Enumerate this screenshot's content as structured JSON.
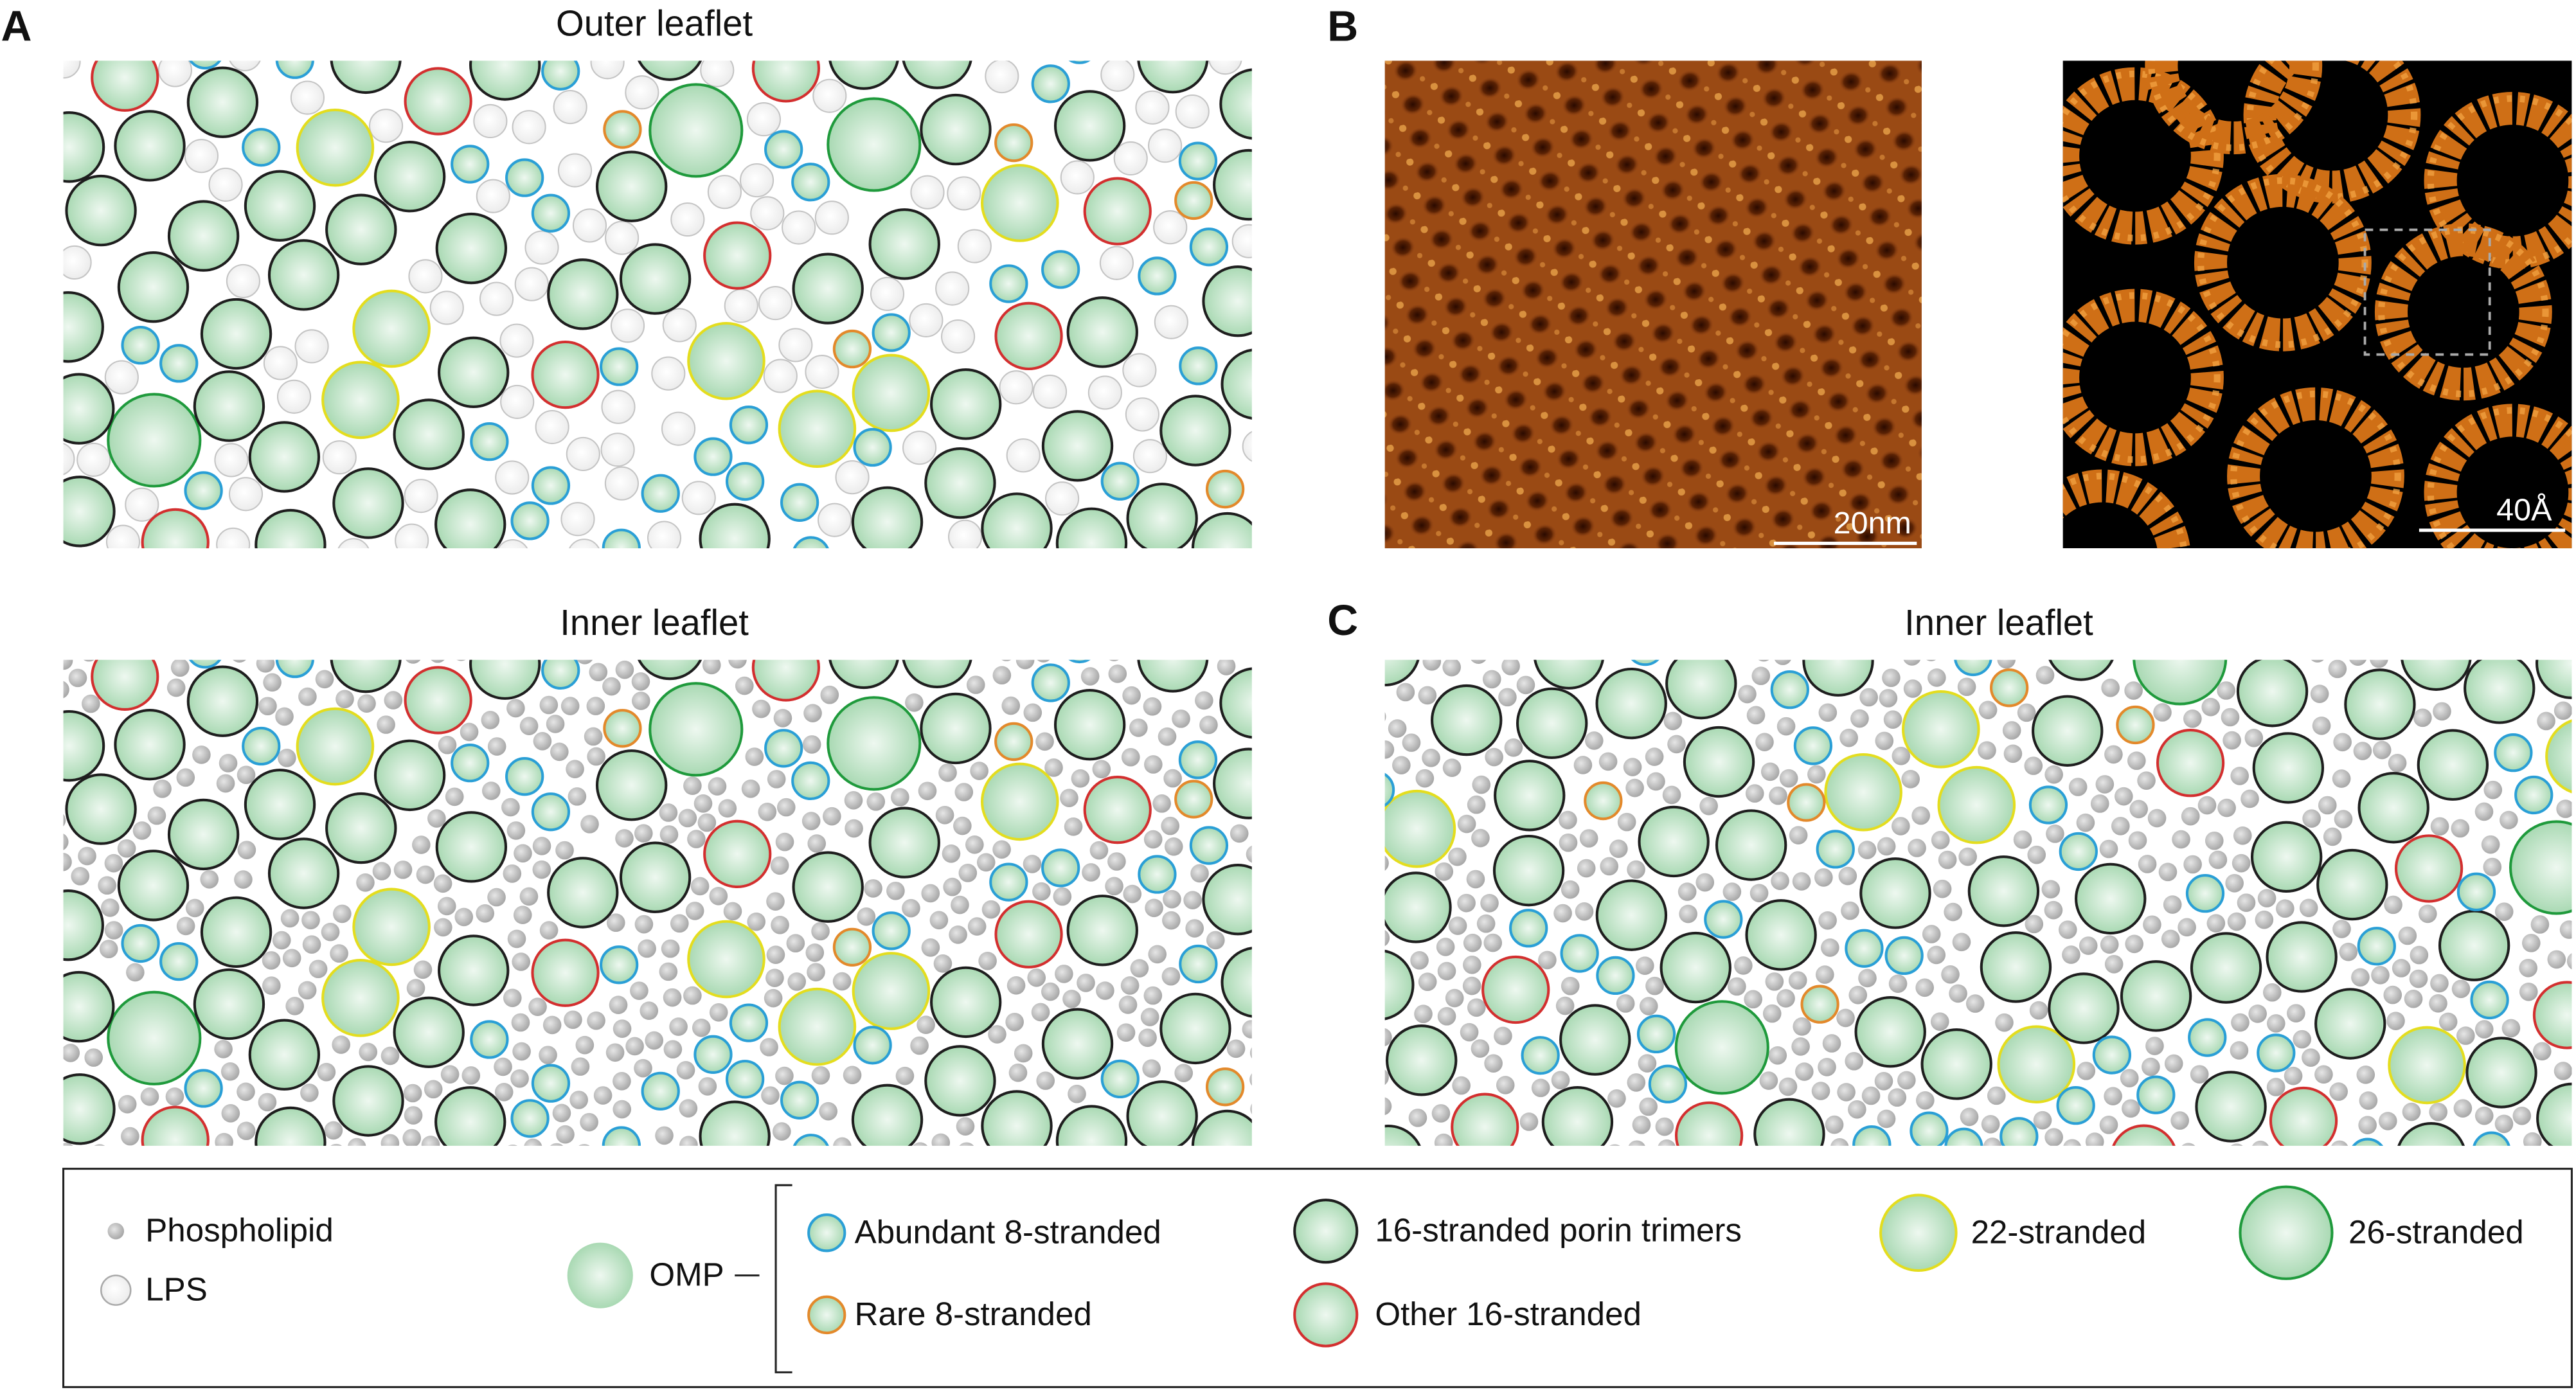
{
  "panels": {
    "A": {
      "label": "A",
      "outer_title": "Outer leaflet",
      "inner_title": "Inner leaflet"
    },
    "B": {
      "label": "B",
      "scale_left": "20nm",
      "scale_right": "40Å"
    },
    "C": {
      "label": "C",
      "title": "Inner leaflet"
    }
  },
  "legend": {
    "phospholipid": "Phospholipid",
    "lps": "LPS",
    "omp": "OMP",
    "items": [
      {
        "label": "Abundant 8-stranded",
        "color": "#2a9fd6"
      },
      {
        "label": "Rare 8-stranded",
        "color": "#e3892b"
      },
      {
        "label": "16-stranded porin trimers",
        "color": "#1e1e1e"
      },
      {
        "label": "Other 16-stranded",
        "color": "#d32f2f"
      },
      {
        "label": "22-stranded",
        "color": "#e4dd1e"
      },
      {
        "label": "26-stranded",
        "color": "#1f9a3c"
      }
    ]
  }
}
